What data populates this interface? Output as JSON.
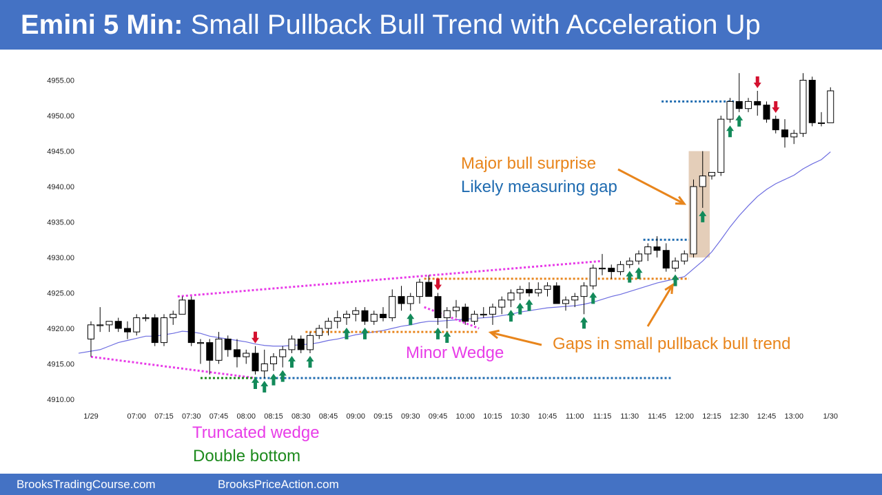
{
  "header": {
    "title_bold": "Emini 5 Min:",
    "title_rest": "Small Pullback Bull Trend with Acceleration Up"
  },
  "footer": {
    "left": "BrooksTradingCourse.com",
    "right": "BrooksPriceAction.com"
  },
  "colors": {
    "header_bg": "#4472c4",
    "bull_fill": "#ffffff",
    "bear_fill": "#000000",
    "ema": "#6c6ce0",
    "magenta": "#e83de8",
    "orange": "#e8851c",
    "blue": "#1f6bb0",
    "green": "#1d8a1d",
    "arrow_up": "#138a5a",
    "arrow_down": "#d4112f",
    "highlight": "#d9b99b"
  },
  "annotations": {
    "major_bull_surprise": "Major bull surprise",
    "measuring_gap": "Likely measuring gap",
    "minor_wedge": "Minor Wedge",
    "gaps": "Gaps in small pullback bull trend",
    "truncated_wedge": "Truncated wedge",
    "double_bottom": "Double bottom"
  },
  "chart_data": {
    "type": "candlestick",
    "title": "Emini 5 Min",
    "y_ticks": [
      "4910.00",
      "4915.00",
      "4920.00",
      "4925.00",
      "4930.00",
      "4935.00",
      "4940.00",
      "4945.00",
      "4950.00",
      "4955.00"
    ],
    "y_tick_values": [
      4910,
      4915,
      4920,
      4925,
      4930,
      4935,
      4940,
      4945,
      4950,
      4955
    ],
    "ylim": [
      4909,
      4957
    ],
    "x_ticks": [
      "1/29",
      "07:00",
      "07:15",
      "07:30",
      "07:45",
      "08:00",
      "08:15",
      "08:30",
      "08:45",
      "09:00",
      "09:15",
      "09:30",
      "09:45",
      "10:00",
      "10:15",
      "10:30",
      "10:45",
      "11:00",
      "11:15",
      "11:30",
      "11:45",
      "12:00",
      "12:15",
      "12:30",
      "12:45",
      "13:00",
      "1/30"
    ],
    "x_tick_bar_index": [
      0,
      5,
      8,
      11,
      14,
      17,
      20,
      23,
      26,
      29,
      32,
      35,
      38,
      41,
      44,
      47,
      50,
      53,
      56,
      59,
      62,
      65,
      68,
      71,
      74,
      77,
      81
    ],
    "ohlc": [
      [
        4918.5,
        4921.0,
        4916.0,
        4920.5
      ],
      [
        4920.5,
        4923.0,
        4919.5,
        4920.5
      ],
      [
        4920.5,
        4921.0,
        4919.5,
        4921.0
      ],
      [
        4921.0,
        4921.5,
        4919.5,
        4920.0
      ],
      [
        4920.0,
        4921.0,
        4918.5,
        4919.5
      ],
      [
        4919.5,
        4922.0,
        4919.0,
        4921.5
      ],
      [
        4921.5,
        4922.0,
        4921.0,
        4921.5
      ],
      [
        4921.5,
        4922.0,
        4917.5,
        4918.0
      ],
      [
        4918.0,
        4922.0,
        4917.5,
        4921.5
      ],
      [
        4921.5,
        4922.5,
        4920.5,
        4922.0
      ],
      [
        4922.0,
        4924.5,
        4922.0,
        4924.0
      ],
      [
        4924.0,
        4924.5,
        4917.5,
        4918.0
      ],
      [
        4918.0,
        4918.5,
        4915.0,
        4918.0
      ],
      [
        4918.0,
        4918.5,
        4913.5,
        4915.5
      ],
      [
        4915.5,
        4919.5,
        4915.0,
        4918.5
      ],
      [
        4918.5,
        4919.0,
        4916.0,
        4917.0
      ],
      [
        4917.0,
        4918.5,
        4914.5,
        4916.0
      ],
      [
        4916.0,
        4917.0,
        4915.0,
        4916.5
      ],
      [
        4916.5,
        4917.5,
        4913.5,
        4914.0
      ],
      [
        4914.0,
        4917.0,
        4913.0,
        4915.0
      ],
      [
        4915.0,
        4916.5,
        4914.0,
        4916.0
      ],
      [
        4916.0,
        4917.5,
        4914.5,
        4917.0
      ],
      [
        4917.0,
        4919.0,
        4916.5,
        4918.5
      ],
      [
        4918.5,
        4919.0,
        4916.5,
        4917.0
      ],
      [
        4917.0,
        4919.5,
        4916.5,
        4919.0
      ],
      [
        4919.0,
        4920.5,
        4918.5,
        4920.0
      ],
      [
        4920.0,
        4921.5,
        4919.0,
        4921.0
      ],
      [
        4921.0,
        4922.5,
        4920.0,
        4921.5
      ],
      [
        4921.5,
        4922.5,
        4920.5,
        4922.0
      ],
      [
        4922.0,
        4923.0,
        4921.0,
        4922.5
      ],
      [
        4922.5,
        4923.0,
        4920.5,
        4921.0
      ],
      [
        4921.0,
        4922.5,
        4920.5,
        4922.0
      ],
      [
        4922.0,
        4923.0,
        4921.0,
        4921.5
      ],
      [
        4921.5,
        4925.5,
        4921.0,
        4924.5
      ],
      [
        4924.5,
        4926.0,
        4922.5,
        4923.5
      ],
      [
        4923.5,
        4925.0,
        4922.5,
        4924.5
      ],
      [
        4924.5,
        4927.0,
        4923.5,
        4926.5
      ],
      [
        4926.5,
        4927.5,
        4924.5,
        4924.5
      ],
      [
        4924.5,
        4925.0,
        4920.5,
        4921.5
      ],
      [
        4921.5,
        4923.0,
        4920.0,
        4922.5
      ],
      [
        4922.5,
        4924.0,
        4921.5,
        4923.0
      ],
      [
        4923.0,
        4923.5,
        4920.5,
        4921.0
      ],
      [
        4921.0,
        4922.5,
        4920.5,
        4922.0
      ],
      [
        4922.0,
        4923.0,
        4921.5,
        4922.0
      ],
      [
        4922.0,
        4923.5,
        4920.5,
        4923.0
      ],
      [
        4923.0,
        4924.5,
        4922.0,
        4924.0
      ],
      [
        4924.0,
        4925.5,
        4923.0,
        4925.0
      ],
      [
        4925.0,
        4926.0,
        4924.0,
        4925.5
      ],
      [
        4925.5,
        4926.5,
        4924.5,
        4925.0
      ],
      [
        4925.0,
        4926.5,
        4924.5,
        4925.5
      ],
      [
        4925.5,
        4926.5,
        4924.5,
        4926.0
      ],
      [
        4926.0,
        4926.5,
        4923.5,
        4923.5
      ],
      [
        4923.5,
        4924.5,
        4922.5,
        4924.0
      ],
      [
        4924.0,
        4925.0,
        4923.0,
        4924.5
      ],
      [
        4924.5,
        4926.5,
        4922.0,
        4926.0
      ],
      [
        4926.0,
        4929.0,
        4925.5,
        4928.5
      ],
      [
        4928.5,
        4930.5,
        4927.5,
        4928.5
      ],
      [
        4928.5,
        4929.0,
        4927.0,
        4928.0
      ],
      [
        4928.0,
        4929.5,
        4927.5,
        4929.0
      ],
      [
        4929.0,
        4930.0,
        4928.5,
        4929.5
      ],
      [
        4929.5,
        4931.0,
        4929.0,
        4930.5
      ],
      [
        4930.5,
        4932.0,
        4929.5,
        4931.5
      ],
      [
        4931.5,
        4933.0,
        4930.0,
        4931.0
      ],
      [
        4931.0,
        4932.0,
        4928.0,
        4928.5
      ],
      [
        4928.5,
        4930.0,
        4928.0,
        4929.5
      ],
      [
        4929.5,
        4931.0,
        4929.0,
        4930.5
      ],
      [
        4930.5,
        4941.0,
        4930.0,
        4940.0
      ],
      [
        4940.0,
        4945.0,
        4937.0,
        4941.5
      ],
      [
        4941.5,
        4942.0,
        4941.0,
        4942.0
      ],
      [
        4942.0,
        4950.0,
        4941.5,
        4949.5
      ],
      [
        4949.5,
        4952.5,
        4949.0,
        4952.0
      ],
      [
        4952.0,
        4956.0,
        4950.5,
        4951.0
      ],
      [
        4951.0,
        4952.5,
        4950.5,
        4952.0
      ],
      [
        4952.0,
        4953.5,
        4950.0,
        4951.5
      ],
      [
        4951.5,
        4952.0,
        4949.0,
        4949.5
      ],
      [
        4949.5,
        4950.0,
        4947.5,
        4948.0
      ],
      [
        4948.0,
        4949.5,
        4945.5,
        4947.0
      ],
      [
        4947.0,
        4948.0,
        4946.0,
        4947.5
      ],
      [
        4947.5,
        4956.0,
        4947.0,
        4955.0
      ],
      [
        4955.0,
        4955.5,
        4948.5,
        4949.0
      ],
      [
        4949.0,
        4950.5,
        4948.5,
        4949.0
      ],
      [
        4949.0,
        4954.0,
        4949.0,
        4953.5
      ]
    ],
    "ema": [
      4916.5,
      4917.0,
      4917.5,
      4918.0,
      4918.3,
      4918.6,
      4918.9,
      4918.9,
      4919.1,
      4919.3,
      4919.6,
      4919.5,
      4919.3,
      4918.9,
      4918.7,
      4918.5,
      4918.3,
      4918.1,
      4917.8,
      4917.6,
      4917.5,
      4917.5,
      4917.6,
      4917.7,
      4917.8,
      4918.0,
      4918.3,
      4918.5,
      4918.8,
      4919.1,
      4919.3,
      4919.5,
      4919.7,
      4920.0,
      4920.3,
      4920.5,
      4920.8,
      4921.0,
      4921.0,
      4921.1,
      4921.2,
      4921.3,
      4921.4,
      4921.5,
      4921.6,
      4921.8,
      4922.0,
      4922.3,
      4922.5,
      4922.7,
      4922.9,
      4923.0,
      4923.1,
      4923.2,
      4923.4,
      4923.7,
      4924.1,
      4924.5,
      4924.8,
      4925.2,
      4925.6,
      4926.0,
      4926.4,
      4926.7,
      4927.0,
      4927.3,
      4928.4,
      4929.5,
      4930.8,
      4932.5,
      4934.3,
      4935.9,
      4937.3,
      4938.6,
      4939.6,
      4940.4,
      4941.0,
      4941.6,
      4942.5,
      4943.2,
      4943.8,
      4944.9
    ]
  }
}
